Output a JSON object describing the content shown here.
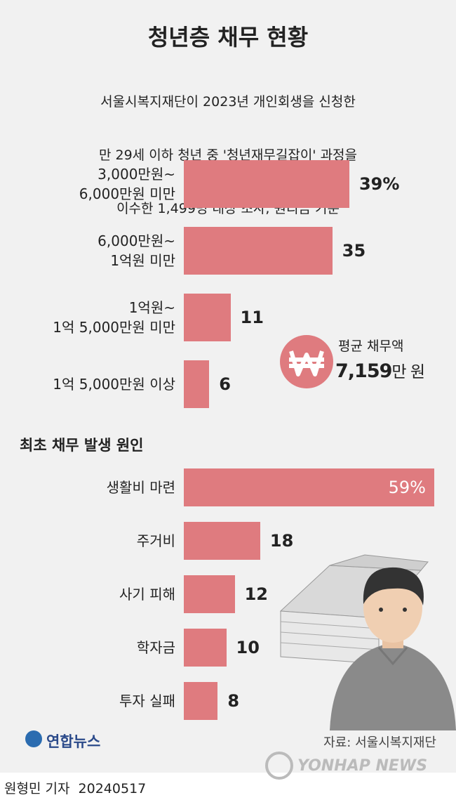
{
  "title": "청년층 채무 현황",
  "subtitle": [
    "서울시복지재단이 2023년 개인회생을 신청한",
    "만 29세 이하 청년 중 '청년재무길잡이' 과정을",
    "이수한 1,499명 대상 조사, 원리금 기준"
  ],
  "chart_data": [
    {
      "type": "bar",
      "orientation": "horizontal",
      "color": "#df7b7f",
      "categories": [
        "3,000만원~\n6,000만원 미만",
        "6,000만원~\n1억원 미만",
        "1억원~\n1억 5,000만원 미만",
        "1억 5,000만원 이상"
      ],
      "values": [
        39,
        35,
        11,
        6
      ],
      "value_labels": [
        "39%",
        "35",
        "11",
        "6"
      ]
    },
    {
      "type": "bar",
      "orientation": "horizontal",
      "color": "#df7b7f",
      "title": "최초 채무 발생 원인",
      "categories": [
        "생활비 마련",
        "주거비",
        "사기 피해",
        "학자금",
        "투자 실패"
      ],
      "values": [
        59,
        18,
        12,
        10,
        8
      ],
      "value_labels": [
        "59%",
        "18",
        "12",
        "10",
        "8"
      ]
    }
  ],
  "callout": {
    "label": "평균 채무액",
    "value": "7,159",
    "unit": "만 원"
  },
  "source": "자료: 서울시복지재단",
  "logo": "연합뉴스",
  "watermark": "YONHAP NEWS",
  "byline": "원형민 기자",
  "date": "20240517"
}
